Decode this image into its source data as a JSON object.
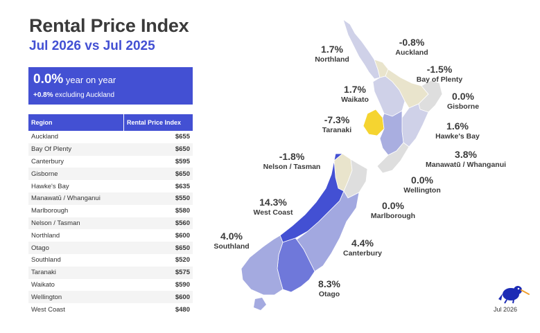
{
  "header": {
    "title": "Rental Price Index",
    "subtitle": "Jul 2026 vs Jul 2025"
  },
  "summary": {
    "yoy_value": "0.0%",
    "yoy_text": " year on year",
    "excl_value": "+0.8%",
    "excl_text": " excluding Auckland"
  },
  "table": {
    "col_region": "Region",
    "col_index": "Rental Price Index",
    "rows": [
      {
        "region": "Auckland",
        "price": "$655"
      },
      {
        "region": "Bay Of Plenty",
        "price": "$650"
      },
      {
        "region": "Canterbury",
        "price": "$595"
      },
      {
        "region": "Gisborne",
        "price": "$650"
      },
      {
        "region": "Hawke's Bay",
        "price": "$635"
      },
      {
        "region": "Manawatū / Whanganui",
        "price": "$550"
      },
      {
        "region": "Marlborough",
        "price": "$580"
      },
      {
        "region": "Nelson / Tasman",
        "price": "$560"
      },
      {
        "region": "Northland",
        "price": "$600"
      },
      {
        "region": "Otago",
        "price": "$650"
      },
      {
        "region": "Southland",
        "price": "$520"
      },
      {
        "region": "Taranaki",
        "price": "$575"
      },
      {
        "region": "Waikato",
        "price": "$590"
      },
      {
        "region": "Wellington",
        "price": "$600"
      },
      {
        "region": "West Coast",
        "price": "$480"
      }
    ]
  },
  "chart_data": {
    "type": "choropleth",
    "regions": [
      {
        "name": "Northland",
        "change": "1.7%",
        "color": "#cfd1e8"
      },
      {
        "name": "Auckland",
        "change": "-0.8%",
        "color": "#e9e4cc"
      },
      {
        "name": "Bay of Plenty",
        "change": "-1.5%",
        "color": "#e9e4cc"
      },
      {
        "name": "Waikato",
        "change": "1.7%",
        "color": "#cfd1e8"
      },
      {
        "name": "Gisborne",
        "change": "0.0%",
        "color": "#dedede"
      },
      {
        "name": "Taranaki",
        "change": "-7.3%",
        "color": "#f5d430"
      },
      {
        "name": "Hawke's Bay",
        "change": "1.6%",
        "color": "#cfd1e8"
      },
      {
        "name": "Manawatū / Whanganui",
        "change": "3.8%",
        "color": "#a9aee0"
      },
      {
        "name": "Wellington",
        "change": "0.0%",
        "color": "#dedede"
      },
      {
        "name": "Nelson / Tasman",
        "change": "-1.8%",
        "color": "#e9e4cc"
      },
      {
        "name": "Marlborough",
        "change": "0.0%",
        "color": "#dedede"
      },
      {
        "name": "West Coast",
        "change": "14.3%",
        "color": "#4350d3"
      },
      {
        "name": "Canterbury",
        "change": "4.4%",
        "color": "#a2a8e0"
      },
      {
        "name": "Southland",
        "change": "4.0%",
        "color": "#a4aae0"
      },
      {
        "name": "Otago",
        "change": "8.3%",
        "color": "#6f78da"
      }
    ]
  },
  "footer": {
    "date": "Jul 2026",
    "logo": "kiwi-logo"
  },
  "colors": {
    "accent": "#4350d3",
    "title": "#3a3a3a"
  }
}
